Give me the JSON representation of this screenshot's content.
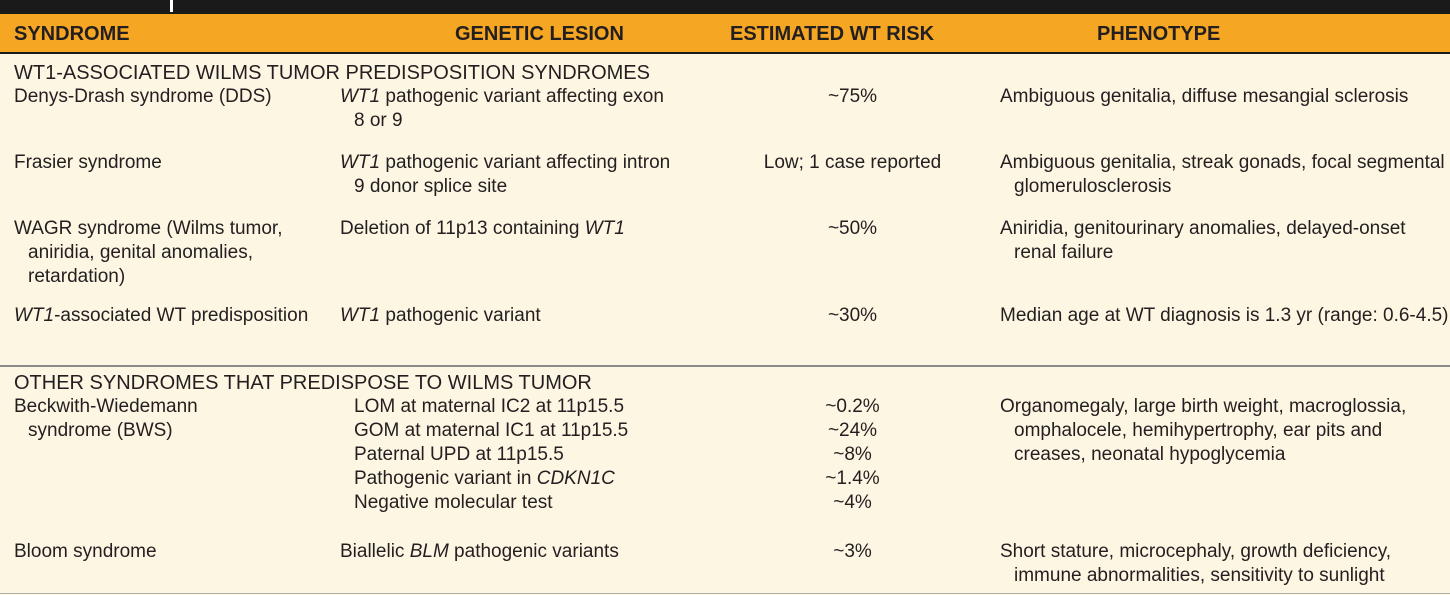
{
  "header": {
    "syndrome": "SYNDROME",
    "genetic_lesion": "GENETIC LESION",
    "risk": "ESTIMATED WT RISK",
    "phenotype": "PHENOTYPE"
  },
  "section1": {
    "title": "WT1-ASSOCIATED WILMS TUMOR PREDISPOSITION SYNDROMES",
    "rows": [
      {
        "syndrome": "Denys-Drash syndrome (DDS)",
        "lesion_gene": "WT1",
        "lesion_text": " pathogenic variant affecting exon 8 or 9",
        "risk": "~75%",
        "phenotype": "Ambiguous genitalia, diffuse mesangial sclerosis"
      },
      {
        "syndrome": "Frasier syndrome",
        "lesion_gene": "WT1",
        "lesion_text": " pathogenic variant affecting intron 9 donor splice site",
        "risk": "Low; 1 case reported",
        "phenotype": "Ambiguous genitalia, streak gonads, focal segmental glomerulosclerosis"
      },
      {
        "syndrome": "WAGR syndrome (Wilms tumor, aniridia, genital anomalies, retardation)",
        "lesion_text": "Deletion of 11p13 containing ",
        "lesion_gene": "WT1",
        "risk": "~50%",
        "phenotype": "Aniridia, genitourinary anomalies, delayed-onset renal failure"
      },
      {
        "syndrome_gene": "WT1",
        "syndrome_text": "-associated WT predisposition",
        "lesion_gene": "WT1",
        "lesion_text": " pathogenic variant",
        "risk": "~30%",
        "phenotype": "Median age at WT diagnosis is 1.3 yr (range: 0.6-4.5)"
      }
    ]
  },
  "section2": {
    "title": "OTHER SYNDROMES THAT PREDISPOSE TO WILMS TUMOR",
    "bws": {
      "syndrome": "Beckwith-Wiedemann syndrome (BWS)",
      "lesions": [
        {
          "text": "LOM at maternal IC2 at 11p15.5",
          "risk": "~0.2%"
        },
        {
          "text": "GOM at maternal IC1 at 11p15.5",
          "risk": "~24%"
        },
        {
          "text": "Paternal UPD at 11p15.5",
          "risk": "~8%"
        },
        {
          "text": "Pathogenic variant in ",
          "gene": "CDKN1C",
          "risk": "~1.4%"
        },
        {
          "text": "Negative molecular test",
          "risk": "~4%"
        }
      ],
      "phenotype": "Organomegaly, large birth weight, macroglossia, omphalocele, hemihypertrophy, ear pits and creases, neonatal hypoglycemia"
    },
    "bloom": {
      "syndrome": "Bloom syndrome",
      "lesion_pre": "Biallelic ",
      "lesion_gene": "BLM",
      "lesion_text": " pathogenic variants",
      "risk": "~3%",
      "phenotype": "Short stature, microcephaly, growth deficiency, immune abnormalities, sensitivity to sunlight"
    }
  }
}
